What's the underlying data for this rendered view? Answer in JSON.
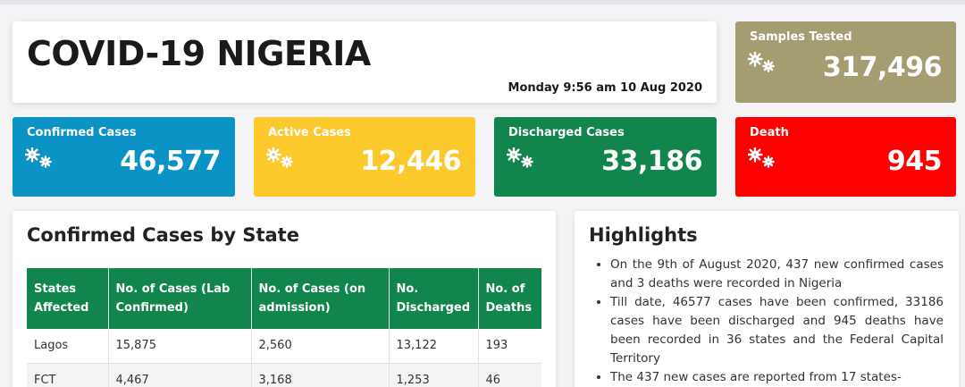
{
  "header": {
    "title": "COVID-19 NIGERIA",
    "timestamp": "Monday 9:56 am 10 Aug 2020"
  },
  "stats": {
    "samples": {
      "label": "Samples Tested",
      "value": "317,496",
      "color": "#a49d72"
    },
    "confirmed": {
      "label": "Confirmed Cases",
      "value": "46,577",
      "color": "#0b93c5"
    },
    "active": {
      "label": "Active Cases",
      "value": "12,446",
      "color": "#fcc92d"
    },
    "discharged": {
      "label": "Discharged Cases",
      "value": "33,186",
      "color": "#12854e"
    },
    "death": {
      "label": "Death",
      "value": "945",
      "color": "#ff0000"
    },
    "icon": "virus-icon"
  },
  "states_panel": {
    "title": "Confirmed Cases by State",
    "columns": [
      "States Affected",
      "No. of Cases (Lab Confirmed)",
      "No. of Cases (on admission)",
      "No. Discharged",
      "No. of Deaths"
    ],
    "rows": [
      [
        "Lagos",
        "15,875",
        "2,560",
        "13,122",
        "193"
      ],
      [
        "FCT",
        "4,467",
        "3,168",
        "1,253",
        "46"
      ]
    ]
  },
  "highlights_panel": {
    "title": "Highlights",
    "items": [
      "On the 9th of August 2020, 437 new confirmed cases and 3 deaths were recorded in Nigeria",
      "Till date, 46577 cases have been confirmed, 33186 cases have been discharged and 945 deaths have been recorded in 36 states and the Federal Capital Territory",
      "The 437 new cases are reported from 17 states-"
    ]
  }
}
